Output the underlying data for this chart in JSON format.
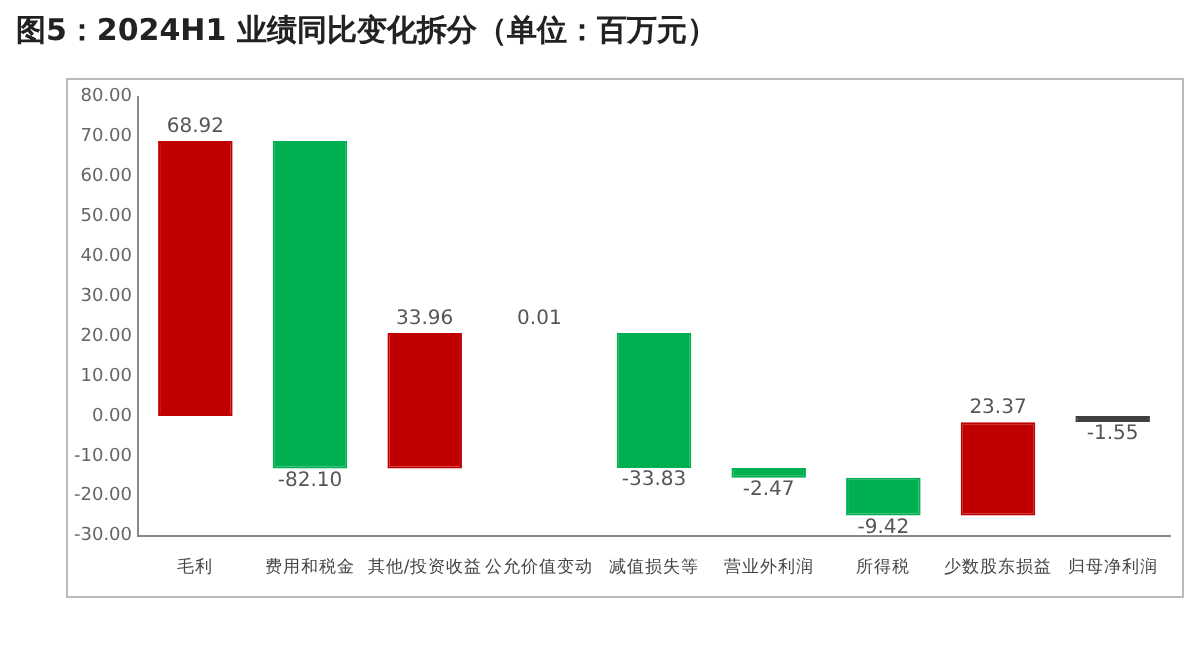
{
  "chart_data": {
    "type": "bar",
    "title": "图5：2024H1 业绩同比变化拆分（单位：百万元）",
    "categories": [
      "毛利",
      "费用和税金",
      "其他/投资收益",
      "公允价值变动",
      "减值损失等",
      "营业外利润",
      "所得税",
      "少数股东损益",
      "归母净利润"
    ],
    "values": [
      68.92,
      -82.1,
      33.96,
      0.01,
      -33.83,
      -2.47,
      -9.42,
      23.37,
      -1.55
    ],
    "base": [
      0,
      68.92,
      -13.18,
      20.78,
      20.79,
      -13.04,
      -15.51,
      -24.93,
      0
    ],
    "colors": [
      "#c00000",
      "#00b050",
      "#c00000",
      "#c00000",
      "#00b050",
      "#00b050",
      "#00b050",
      "#c00000",
      "#404040"
    ],
    "ylim": [
      -30,
      80
    ],
    "yticks": [
      {
        "value": -30,
        "label": "-30.00"
      },
      {
        "value": -20,
        "label": "-20.00"
      },
      {
        "value": -10,
        "label": "-10.00"
      },
      {
        "value": 0,
        "label": "0.00"
      },
      {
        "value": 10,
        "label": "10.00"
      },
      {
        "value": 20,
        "label": "20.00"
      },
      {
        "value": 30,
        "label": "30.00"
      },
      {
        "value": 40,
        "label": "40.00"
      },
      {
        "value": 50,
        "label": "50.00"
      },
      {
        "value": 60,
        "label": "60.00"
      },
      {
        "value": 70,
        "label": "70.00"
      },
      {
        "value": 80,
        "label": "80.00"
      }
    ],
    "value_labels": [
      "68.92",
      "-82.10",
      "33.96",
      "0.01",
      "-33.83",
      "-2.47",
      "-9.42",
      "23.37",
      "-1.55"
    ]
  }
}
